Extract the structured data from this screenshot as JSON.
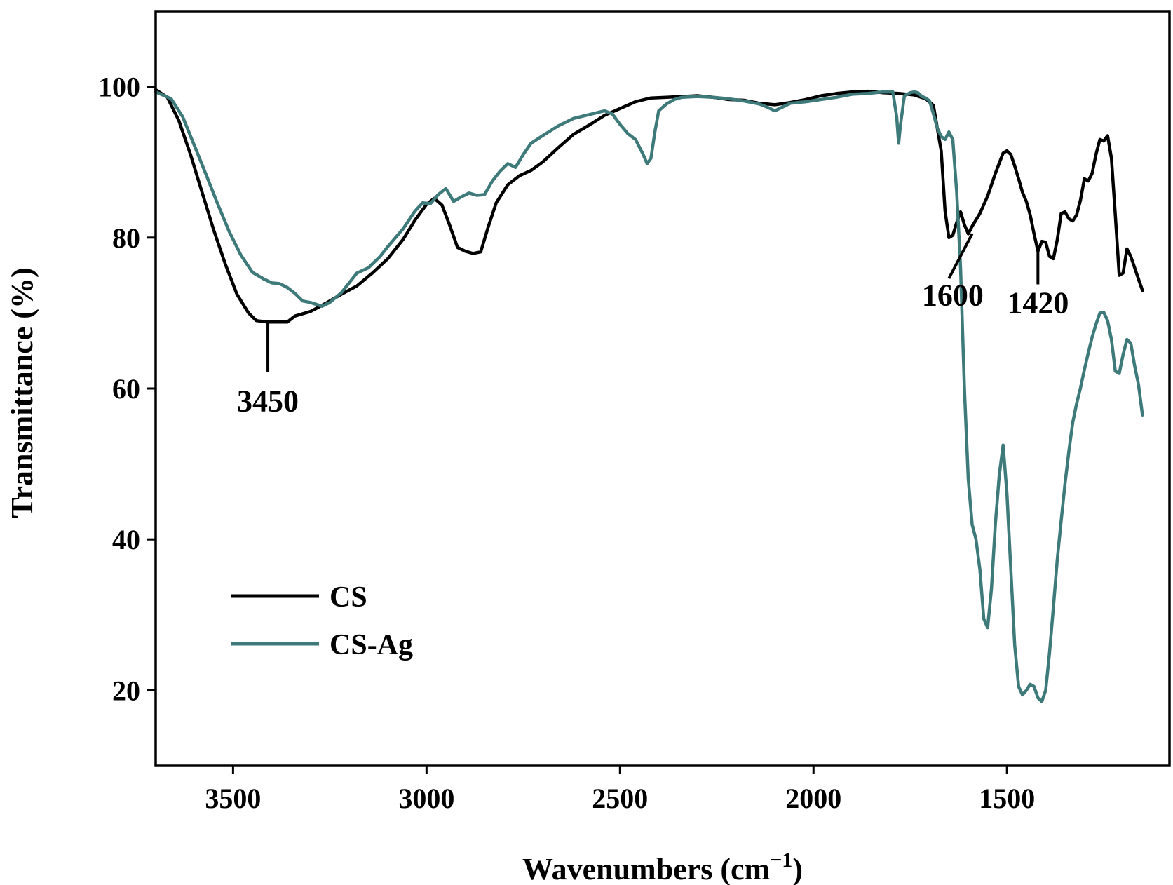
{
  "chart_data": {
    "type": "line",
    "title": "",
    "xlabel": "Wavenumbers (cm",
    "xlabel_sup": "−1",
    "xlabel_close": ")",
    "ylabel": "Transmittance (%)",
    "xlim": [
      3700,
      1080
    ],
    "ylim": [
      10,
      110
    ],
    "x_reversed": true,
    "grid": false,
    "legend_position": "bottom-left",
    "x_ticks": [
      {
        "value": 3500,
        "label": "3500"
      },
      {
        "value": 3000,
        "label": "3000"
      },
      {
        "value": 2500,
        "label": "2500"
      },
      {
        "value": 2000,
        "label": "2000"
      },
      {
        "value": 1500,
        "label": "1500"
      }
    ],
    "y_ticks": [
      {
        "value": 20,
        "label": "20"
      },
      {
        "value": 40,
        "label": "40"
      },
      {
        "value": 60,
        "label": "60"
      },
      {
        "value": 80,
        "label": "80"
      },
      {
        "value": 100,
        "label": "100"
      }
    ],
    "series": [
      {
        "name": "CS",
        "color": "#000000",
        "points": [
          [
            3700,
            99.6
          ],
          [
            3670,
            98.6
          ],
          [
            3640,
            95.5
          ],
          [
            3610,
            91
          ],
          [
            3580,
            86
          ],
          [
            3550,
            81
          ],
          [
            3520,
            76.5
          ],
          [
            3490,
            72.5
          ],
          [
            3460,
            70
          ],
          [
            3440,
            69
          ],
          [
            3410,
            68.8
          ],
          [
            3380,
            68.8
          ],
          [
            3360,
            68.8
          ],
          [
            3340,
            69.6
          ],
          [
            3300,
            70.2
          ],
          [
            3260,
            71.3
          ],
          [
            3220,
            72.5
          ],
          [
            3180,
            73.6
          ],
          [
            3140,
            75.3
          ],
          [
            3100,
            77.2
          ],
          [
            3060,
            79.8
          ],
          [
            3030,
            82.3
          ],
          [
            3000,
            84.4
          ],
          [
            2980,
            85.2
          ],
          [
            2960,
            84.3
          ],
          [
            2940,
            81.6
          ],
          [
            2920,
            78.7
          ],
          [
            2900,
            78.2
          ],
          [
            2880,
            77.9
          ],
          [
            2860,
            78.1
          ],
          [
            2840,
            81.5
          ],
          [
            2820,
            84.6
          ],
          [
            2790,
            87
          ],
          [
            2760,
            88.2
          ],
          [
            2730,
            88.9
          ],
          [
            2700,
            90
          ],
          [
            2660,
            91.9
          ],
          [
            2620,
            93.7
          ],
          [
            2580,
            94.9
          ],
          [
            2540,
            96.2
          ],
          [
            2500,
            97.1
          ],
          [
            2460,
            98
          ],
          [
            2420,
            98.5
          ],
          [
            2380,
            98.6
          ],
          [
            2340,
            98.7
          ],
          [
            2300,
            98.8
          ],
          [
            2260,
            98.6
          ],
          [
            2220,
            98.3
          ],
          [
            2180,
            98.2
          ],
          [
            2140,
            97.8
          ],
          [
            2100,
            97.6
          ],
          [
            2060,
            97.9
          ],
          [
            2020,
            98.3
          ],
          [
            1980,
            98.8
          ],
          [
            1940,
            99.1
          ],
          [
            1900,
            99.3
          ],
          [
            1860,
            99.4
          ],
          [
            1820,
            99.2
          ],
          [
            1780,
            99.1
          ],
          [
            1740,
            98.9
          ],
          [
            1710,
            98.4
          ],
          [
            1690,
            97.5
          ],
          [
            1670,
            91.5
          ],
          [
            1660,
            83.5
          ],
          [
            1650,
            80
          ],
          [
            1640,
            80.3
          ],
          [
            1630,
            82
          ],
          [
            1620,
            83.4
          ],
          [
            1610,
            81.7
          ],
          [
            1600,
            80.5
          ],
          [
            1590,
            81.5
          ],
          [
            1570,
            83.2
          ],
          [
            1550,
            85.5
          ],
          [
            1530,
            88.5
          ],
          [
            1510,
            91.2
          ],
          [
            1500,
            91.5
          ],
          [
            1490,
            91
          ],
          [
            1480,
            89.5
          ],
          [
            1470,
            87.8
          ],
          [
            1460,
            86
          ],
          [
            1450,
            84.8
          ],
          [
            1440,
            83
          ],
          [
            1430,
            80.5
          ],
          [
            1420,
            78.2
          ],
          [
            1410,
            79.5
          ],
          [
            1400,
            79.4
          ],
          [
            1390,
            77.5
          ],
          [
            1380,
            77.2
          ],
          [
            1370,
            79.7
          ],
          [
            1360,
            83.2
          ],
          [
            1350,
            83.4
          ],
          [
            1340,
            82.5
          ],
          [
            1330,
            82.2
          ],
          [
            1320,
            83
          ],
          [
            1310,
            85
          ],
          [
            1300,
            87.8
          ],
          [
            1290,
            87.5
          ],
          [
            1280,
            88.5
          ],
          [
            1270,
            91
          ],
          [
            1260,
            93
          ],
          [
            1250,
            92.8
          ],
          [
            1240,
            93.5
          ],
          [
            1230,
            90.5
          ],
          [
            1220,
            83
          ],
          [
            1210,
            75
          ],
          [
            1200,
            75.3
          ],
          [
            1190,
            78.5
          ],
          [
            1180,
            77.5
          ],
          [
            1170,
            76
          ],
          [
            1160,
            74.5
          ],
          [
            1150,
            73
          ]
        ]
      },
      {
        "name": "CS-Ag",
        "color": "#3e7a7a",
        "points": [
          [
            3700,
            99.3
          ],
          [
            3660,
            98.4
          ],
          [
            3630,
            96
          ],
          [
            3600,
            92.2
          ],
          [
            3570,
            88.4
          ],
          [
            3540,
            84.5
          ],
          [
            3510,
            80.8
          ],
          [
            3480,
            77.7
          ],
          [
            3450,
            75.4
          ],
          [
            3420,
            74.5
          ],
          [
            3400,
            74
          ],
          [
            3380,
            73.9
          ],
          [
            3360,
            73.4
          ],
          [
            3340,
            72.6
          ],
          [
            3320,
            71.6
          ],
          [
            3300,
            71.4
          ],
          [
            3270,
            70.9
          ],
          [
            3250,
            71.4
          ],
          [
            3220,
            72.7
          ],
          [
            3200,
            74
          ],
          [
            3180,
            75.3
          ],
          [
            3150,
            76
          ],
          [
            3120,
            77.5
          ],
          [
            3100,
            78.8
          ],
          [
            3060,
            81.2
          ],
          [
            3030,
            83.5
          ],
          [
            3010,
            84.6
          ],
          [
            2990,
            84.5
          ],
          [
            2970,
            85.7
          ],
          [
            2950,
            86.5
          ],
          [
            2930,
            84.8
          ],
          [
            2910,
            85.4
          ],
          [
            2890,
            85.9
          ],
          [
            2870,
            85.6
          ],
          [
            2850,
            85.7
          ],
          [
            2830,
            87.5
          ],
          [
            2810,
            88.8
          ],
          [
            2790,
            89.8
          ],
          [
            2770,
            89.3
          ],
          [
            2750,
            91
          ],
          [
            2730,
            92.5
          ],
          [
            2700,
            93.5
          ],
          [
            2660,
            94.8
          ],
          [
            2620,
            95.8
          ],
          [
            2580,
            96.3
          ],
          [
            2540,
            96.8
          ],
          [
            2520,
            96.4
          ],
          [
            2500,
            95
          ],
          [
            2480,
            93.8
          ],
          [
            2460,
            93
          ],
          [
            2440,
            91
          ],
          [
            2430,
            89.8
          ],
          [
            2420,
            90.5
          ],
          [
            2410,
            94
          ],
          [
            2400,
            96.8
          ],
          [
            2380,
            97.7
          ],
          [
            2360,
            98.3
          ],
          [
            2340,
            98.6
          ],
          [
            2300,
            98.7
          ],
          [
            2260,
            98.6
          ],
          [
            2220,
            98.4
          ],
          [
            2180,
            98.1
          ],
          [
            2140,
            97.7
          ],
          [
            2120,
            97.3
          ],
          [
            2100,
            96.8
          ],
          [
            2080,
            97.3
          ],
          [
            2060,
            97.8
          ],
          [
            2020,
            98
          ],
          [
            1980,
            98.3
          ],
          [
            1940,
            98.6
          ],
          [
            1900,
            99
          ],
          [
            1860,
            99.1
          ],
          [
            1820,
            99.3
          ],
          [
            1795,
            99.3
          ],
          [
            1785,
            96
          ],
          [
            1780,
            92.5
          ],
          [
            1775,
            95
          ],
          [
            1765,
            98.8
          ],
          [
            1750,
            99.2
          ],
          [
            1740,
            99.3
          ],
          [
            1730,
            99.2
          ],
          [
            1720,
            98.7
          ],
          [
            1710,
            98.5
          ],
          [
            1700,
            98.1
          ],
          [
            1690,
            96.4
          ],
          [
            1680,
            94.5
          ],
          [
            1670,
            93.4
          ],
          [
            1660,
            93
          ],
          [
            1650,
            94
          ],
          [
            1640,
            93
          ],
          [
            1630,
            86
          ],
          [
            1620,
            76
          ],
          [
            1610,
            60
          ],
          [
            1600,
            48
          ],
          [
            1590,
            42
          ],
          [
            1580,
            40
          ],
          [
            1570,
            36
          ],
          [
            1560,
            29.5
          ],
          [
            1550,
            28.3
          ],
          [
            1540,
            33.5
          ],
          [
            1530,
            42
          ],
          [
            1520,
            48.5
          ],
          [
            1510,
            52.5
          ],
          [
            1500,
            46
          ],
          [
            1490,
            36
          ],
          [
            1480,
            26
          ],
          [
            1470,
            20.5
          ],
          [
            1460,
            19.4
          ],
          [
            1450,
            20
          ],
          [
            1440,
            20.8
          ],
          [
            1430,
            20.5
          ],
          [
            1420,
            19
          ],
          [
            1410,
            18.5
          ],
          [
            1400,
            20
          ],
          [
            1390,
            25
          ],
          [
            1380,
            31
          ],
          [
            1370,
            37.3
          ],
          [
            1360,
            42.5
          ],
          [
            1350,
            47.4
          ],
          [
            1340,
            51.7
          ],
          [
            1330,
            55.5
          ],
          [
            1320,
            58
          ],
          [
            1310,
            60.1
          ],
          [
            1300,
            62.5
          ],
          [
            1290,
            64.7
          ],
          [
            1280,
            66.8
          ],
          [
            1270,
            68.5
          ],
          [
            1260,
            70
          ],
          [
            1250,
            70.1
          ],
          [
            1240,
            69
          ],
          [
            1230,
            66.5
          ],
          [
            1220,
            62.3
          ],
          [
            1210,
            62
          ],
          [
            1200,
            64.5
          ],
          [
            1190,
            66.5
          ],
          [
            1180,
            66
          ],
          [
            1170,
            63
          ],
          [
            1160,
            60.5
          ],
          [
            1150,
            56.5
          ]
        ]
      }
    ],
    "annotations": [
      {
        "label": "3450",
        "tip_x": 3410,
        "tip_y": 68.8,
        "end_x": 3410,
        "end_y": 62.2,
        "label_x": 3410,
        "label_y": 57
      },
      {
        "label": "1600",
        "tip_x": 1590,
        "tip_y": 80.5,
        "end_x": 1650,
        "end_y": 74.6,
        "label_x": 1640,
        "label_y": 71
      },
      {
        "label": "1420",
        "tip_x": 1420,
        "tip_y": 78.2,
        "end_x": 1420,
        "end_y": 73.8,
        "label_x": 1420,
        "label_y": 70
      }
    ]
  }
}
